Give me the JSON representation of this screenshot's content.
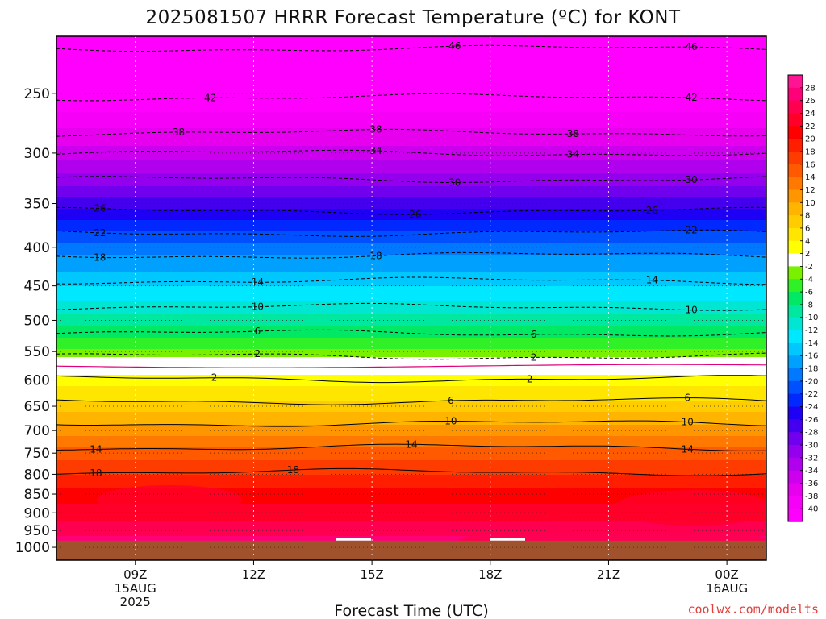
{
  "chart_data": {
    "type": "heatmap",
    "title": "2025081507 HRRR Forecast Temperature (ºC) for KONT",
    "xlabel": "Forecast Time (UTC)",
    "ylabel": "",
    "credit": "coolwx.com/modelts",
    "y_scale": "log-pressure",
    "y_inverted": true,
    "x_range_hours": [
      7,
      25
    ],
    "y_range_hpa": [
      210,
      1040
    ],
    "x_ticks": [
      {
        "hour": 9,
        "lines": [
          "09Z",
          "15AUG",
          "2025"
        ]
      },
      {
        "hour": 12,
        "lines": [
          "12Z"
        ]
      },
      {
        "hour": 15,
        "lines": [
          "15Z"
        ]
      },
      {
        "hour": 18,
        "lines": [
          "18Z"
        ]
      },
      {
        "hour": 21,
        "lines": [
          "21Z"
        ]
      },
      {
        "hour": 24,
        "lines": [
          "00Z",
          "16AUG"
        ]
      }
    ],
    "y_ticks": [
      250,
      300,
      350,
      400,
      450,
      500,
      550,
      600,
      650,
      700,
      750,
      800,
      850,
      900,
      950,
      1000
    ],
    "color_levels": [
      -40,
      -38,
      -36,
      -34,
      -32,
      -30,
      -28,
      -26,
      -24,
      -22,
      -20,
      -18,
      -16,
      -14,
      -12,
      -10,
      -8,
      -6,
      -4,
      -2,
      2,
      4,
      6,
      8,
      10,
      12,
      14,
      16,
      18,
      20,
      22,
      24,
      26,
      28
    ],
    "colorbar_labels": [
      "28",
      "26",
      "24",
      "22",
      "20",
      "18",
      "16",
      "14",
      "12",
      "10",
      "8",
      "6",
      "4",
      "2",
      "-2",
      "-4",
      "-6",
      "-8",
      "-10",
      "-12",
      "-14",
      "-16",
      "-18",
      "-20",
      "-22",
      "-24",
      "-26",
      "-28",
      "-30",
      "-32",
      "-34",
      "-36",
      "-38",
      "-40"
    ],
    "profile": {
      "pressure_hpa": [
        210,
        250,
        300,
        350,
        400,
        450,
        500,
        550,
        575,
        600,
        650,
        700,
        750,
        800,
        850,
        900,
        950,
        985
      ],
      "temp_c": [
        -48,
        -42,
        -35,
        -27,
        -19,
        -14,
        -9,
        -3.5,
        0.5,
        3,
        7,
        11,
        15,
        18,
        21,
        23,
        25,
        27
      ]
    },
    "surface_pressure_hpa": 980,
    "contours": [
      {
        "value": -46,
        "p": 218,
        "labels": [
          {
            "hour": 17.1,
            "text": "46"
          },
          {
            "hour": 23.1,
            "text": "46"
          }
        ]
      },
      {
        "value": -42,
        "p": 253,
        "labels": [
          {
            "hour": 10.9,
            "text": "42"
          },
          {
            "hour": 23.1,
            "text": "42"
          }
        ]
      },
      {
        "value": -38,
        "p": 282,
        "labels": [
          {
            "hour": 10.1,
            "text": "38"
          },
          {
            "hour": 15.1,
            "text": "38"
          },
          {
            "hour": 20.1,
            "text": "38"
          }
        ]
      },
      {
        "value": -34,
        "p": 300,
        "labels": [
          {
            "hour": 15.1,
            "text": "34"
          },
          {
            "hour": 20.1,
            "text": "34"
          }
        ]
      },
      {
        "value": -30,
        "p": 325,
        "labels": [
          {
            "hour": 17.1,
            "text": "30"
          },
          {
            "hour": 23.1,
            "text": "30"
          }
        ]
      },
      {
        "value": -26,
        "p": 358,
        "labels": [
          {
            "hour": 8.1,
            "text": "26"
          },
          {
            "hour": 16.1,
            "text": "26"
          },
          {
            "hour": 22.1,
            "text": "26"
          }
        ]
      },
      {
        "value": -22,
        "p": 383,
        "labels": [
          {
            "hour": 8.1,
            "text": "22"
          },
          {
            "hour": 23.1,
            "text": "22"
          }
        ]
      },
      {
        "value": -18,
        "p": 410,
        "labels": [
          {
            "hour": 8.1,
            "text": "18"
          },
          {
            "hour": 15.1,
            "text": "18"
          }
        ]
      },
      {
        "value": -14,
        "p": 443,
        "labels": [
          {
            "hour": 12.1,
            "text": "14"
          },
          {
            "hour": 22.1,
            "text": "14"
          }
        ]
      },
      {
        "value": -10,
        "p": 480,
        "labels": [
          {
            "hour": 12.1,
            "text": "10"
          },
          {
            "hour": 23.1,
            "text": "10"
          }
        ]
      },
      {
        "value": -6,
        "p": 520,
        "labels": [
          {
            "hour": 12.1,
            "text": "6"
          },
          {
            "hour": 19.1,
            "text": "6"
          }
        ]
      },
      {
        "value": -2,
        "p": 558,
        "labels": [
          {
            "hour": 12.1,
            "text": "2"
          },
          {
            "hour": 19.1,
            "text": "2"
          }
        ]
      },
      {
        "value": 2,
        "p": 598,
        "labels": [
          {
            "hour": 11.0,
            "text": "2"
          },
          {
            "hour": 19.0,
            "text": "2"
          }
        ]
      },
      {
        "value": 6,
        "p": 640,
        "labels": [
          {
            "hour": 17.0,
            "text": "6"
          },
          {
            "hour": 23.0,
            "text": "6"
          }
        ]
      },
      {
        "value": 10,
        "p": 685,
        "labels": [
          {
            "hour": 17.0,
            "text": "10"
          },
          {
            "hour": 23.0,
            "text": "10"
          }
        ]
      },
      {
        "value": 14,
        "p": 737,
        "labels": [
          {
            "hour": 8.0,
            "text": "14"
          },
          {
            "hour": 16.0,
            "text": "14"
          },
          {
            "hour": 23.0,
            "text": "14"
          }
        ]
      },
      {
        "value": 18,
        "p": 795,
        "labels": [
          {
            "hour": 8.0,
            "text": "18"
          },
          {
            "hour": 13.0,
            "text": "18"
          }
        ]
      }
    ]
  }
}
